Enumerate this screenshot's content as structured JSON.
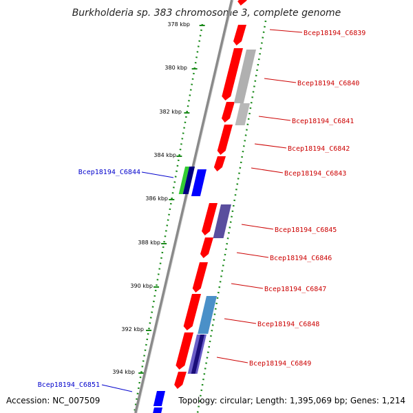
{
  "title": "Burkholderia sp. 383 chromosome 3, complete genome",
  "footer": {
    "accession": "Accession: NC_007509",
    "summary": "Topology: circular; Length: 1,395,069 bp; Genes: 1,214"
  },
  "colors": {
    "backbone": "#8a8a8a",
    "forward_strand": "#ff0000",
    "ruler": "#1a8a1a",
    "label_right": "#cc0000",
    "label_left": "#0000cc"
  },
  "ruler": [
    {
      "label": "378 kbp"
    },
    {
      "label": "380 kbp"
    },
    {
      "label": "382 kbp"
    },
    {
      "label": "384 kbp"
    },
    {
      "label": "386 kbp"
    },
    {
      "label": "388 kbp"
    },
    {
      "label": "390 kbp"
    },
    {
      "label": "392 kbp"
    },
    {
      "label": "394 kbp"
    }
  ],
  "genes_right": [
    {
      "label": "Bcep18194_C6839"
    },
    {
      "label": "Bcep18194_C6840"
    },
    {
      "label": "Bcep18194_C6841"
    },
    {
      "label": "Bcep18194_C6842"
    },
    {
      "label": "Bcep18194_C6843"
    },
    {
      "label": "Bcep18194_C6845"
    },
    {
      "label": "Bcep18194_C6846"
    },
    {
      "label": "Bcep18194_C6847"
    },
    {
      "label": "Bcep18194_C6848"
    },
    {
      "label": "Bcep18194_C6849"
    }
  ],
  "genes_left": [
    {
      "label": "Bcep18194_C6844"
    },
    {
      "label": "Bcep18194_C6851"
    }
  ]
}
